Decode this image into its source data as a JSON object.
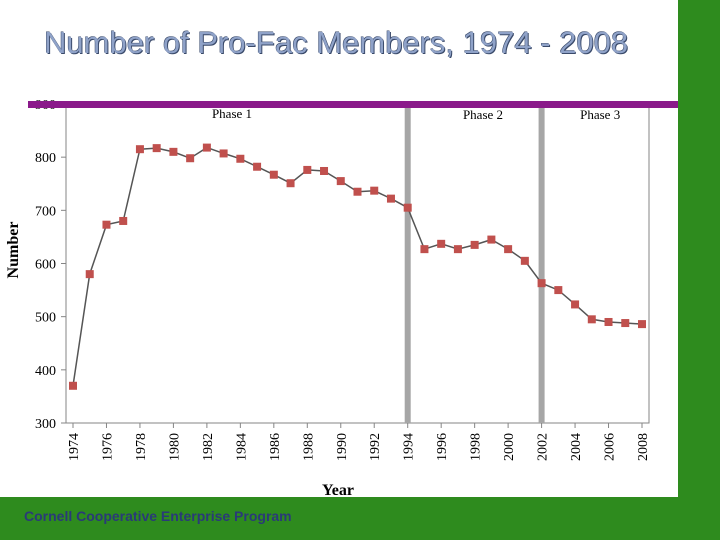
{
  "slide": {
    "title": "Number of Pro-Fac Members, 1974 - 2008",
    "footer": "Cornell Cooperative Enterprise Program"
  },
  "colors": {
    "green": "#2e8b1e",
    "purple": "#8a1a8a",
    "title": "#8fa2c8",
    "footer": "#2a3a78",
    "series": "#c0504d",
    "phase_divider": "#a6a6a6"
  },
  "chart_data": {
    "type": "line",
    "title": "",
    "xlabel": "Year",
    "ylabel": "Number",
    "ylim": [
      300,
      900
    ],
    "xlim": [
      1974,
      2008
    ],
    "yticks": [
      300,
      400,
      500,
      600,
      700,
      800,
      900
    ],
    "xticks": [
      1974,
      1976,
      1978,
      1980,
      1982,
      1984,
      1986,
      1988,
      1990,
      1992,
      1994,
      1996,
      1998,
      2000,
      2002,
      2004,
      2006,
      2008
    ],
    "grid": false,
    "series": [
      {
        "x": [
          1974,
          1975,
          1976,
          1977,
          1978,
          1979,
          1980,
          1981,
          1982,
          1983,
          1984,
          1985,
          1986,
          1987,
          1988,
          1989,
          1990,
          1991,
          1992,
          1993,
          1994,
          1995,
          1996,
          1997,
          1998,
          1999,
          2000,
          2001,
          2002,
          2003,
          2004,
          2005,
          2006,
          2007,
          2008
        ],
        "values": [
          370,
          580,
          673,
          680,
          815,
          817,
          810,
          798,
          818,
          807,
          797,
          782,
          767,
          751,
          776,
          774,
          755,
          735,
          737,
          722,
          705,
          627,
          637,
          627,
          635,
          645,
          627,
          605,
          563,
          550,
          523,
          495,
          490,
          488,
          486
        ]
      }
    ],
    "phases": [
      {
        "label": "Phase 1",
        "label_x": 1983.5,
        "label_y": 874
      },
      {
        "label": "Phase 2",
        "label_x": 1998.5,
        "label_y": 872
      },
      {
        "label": "Phase 3",
        "label_x": 2005.5,
        "label_y": 872
      }
    ],
    "phase_dividers": [
      1994,
      2002
    ]
  }
}
